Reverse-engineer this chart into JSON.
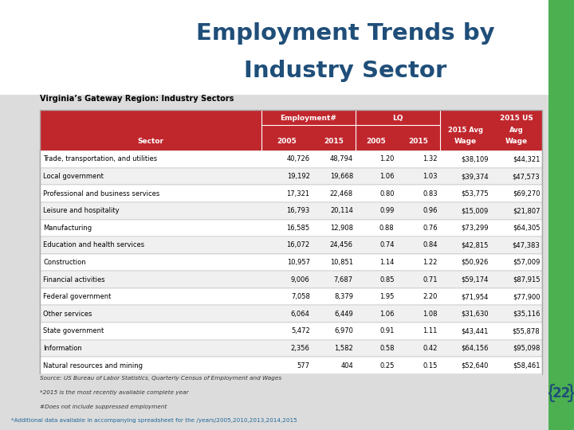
{
  "title_line1": "Employment Trends by",
  "title_line2": "Industry Sector",
  "table_title": "Virginia’s Gateway Region: Industry Sectors",
  "rows": [
    [
      "Trade, transportation, and utilities",
      "40,726",
      "48,794",
      "1.20",
      "1.32",
      "$38,109",
      "$44,321"
    ],
    [
      "Local government",
      "19,192",
      "19,668",
      "1.06",
      "1.03",
      "$39,374",
      "$47,573"
    ],
    [
      "Professional and business services",
      "17,321",
      "22,468",
      "0.80",
      "0.83",
      "$53,775",
      "$69,270"
    ],
    [
      "Leisure and hospitality",
      "16,793",
      "20,114",
      "0.99",
      "0.96",
      "$15,009",
      "$21,807"
    ],
    [
      "Manufacturing",
      "16,585",
      "12,908",
      "0.88",
      "0.76",
      "$73,299",
      "$64,305"
    ],
    [
      "Education and health services",
      "16,072",
      "24,456",
      "0.74",
      "0.84",
      "$42,815",
      "$47,383"
    ],
    [
      "Construction",
      "10,957",
      "10,851",
      "1.14",
      "1.22",
      "$50,926",
      "$57,009"
    ],
    [
      "Financial activities",
      "9,006",
      "7,687",
      "0.85",
      "0.71",
      "$59,174",
      "$87,915"
    ],
    [
      "Federal government",
      "7,058",
      "8,379",
      "1.95",
      "2.20",
      "$71,954",
      "$77,900"
    ],
    [
      "Other services",
      "6,064",
      "6,449",
      "1.06",
      "1.08",
      "$31,630",
      "$35,116"
    ],
    [
      "State government",
      "5,472",
      "6,970",
      "0.91",
      "1.11",
      "$43,441",
      "$55,878"
    ],
    [
      "Information",
      "2,356",
      "1,582",
      "0.58",
      "0.42",
      "$64,156",
      "$95,098"
    ],
    [
      "Natural resources and mining",
      "577",
      "404",
      "0.25",
      "0.15",
      "$52,640",
      "$58,461"
    ]
  ],
  "source_text": "Source: US Bureau of Labor Statistics, Quarterly Census of Employment and Wages",
  "footnote1": "*2015 is the most recently available complete year",
  "footnote2": "#Does not include suppressed employment",
  "bottom_text": "*Additional data available in accompanying spreadsheet for the /years/2005,2010,2013,2014,2015",
  "header_bg": "#C0272D",
  "header_text": "#FFFFFF",
  "row_bg_even": "#FFFFFF",
  "row_bg_odd": "#F0F0F0",
  "border_color": "#AAAAAA",
  "title_color": "#1F4E79",
  "slide_bg": "#DCDCDC",
  "green_bar_color": "#4CAF50",
  "number22_color": "#1F4E79",
  "bottom_text_color": "#1F6699"
}
